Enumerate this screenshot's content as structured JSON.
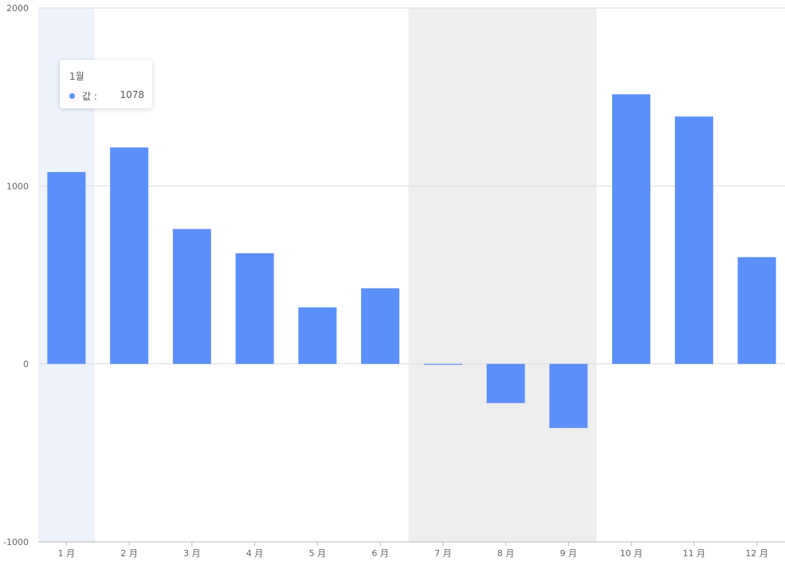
{
  "chart_data": {
    "type": "bar",
    "categories": [
      "1 月",
      "2 月",
      "3 月",
      "4 月",
      "5 月",
      "6 月",
      "7 月",
      "8 月",
      "9 月",
      "10 月",
      "11 月",
      "12 月"
    ],
    "values": [
      1078,
      1216,
      758,
      622,
      318,
      425,
      -5,
      -220,
      -360,
      1515,
      1390,
      600
    ],
    "ylim": [
      -1000,
      2000
    ],
    "yticks": [
      "2000",
      "1000",
      "0",
      "-1000"
    ],
    "bar_color": "#5b8ff9",
    "grid": true,
    "highlight_regions": [
      {
        "from": "7 月",
        "to": "9 月",
        "color": "#eeeeee"
      }
    ],
    "active_category": "1 月",
    "active_band_color": "#eef2fa"
  },
  "tooltip": {
    "title": "1월",
    "label": "값 :",
    "value": "1078"
  }
}
